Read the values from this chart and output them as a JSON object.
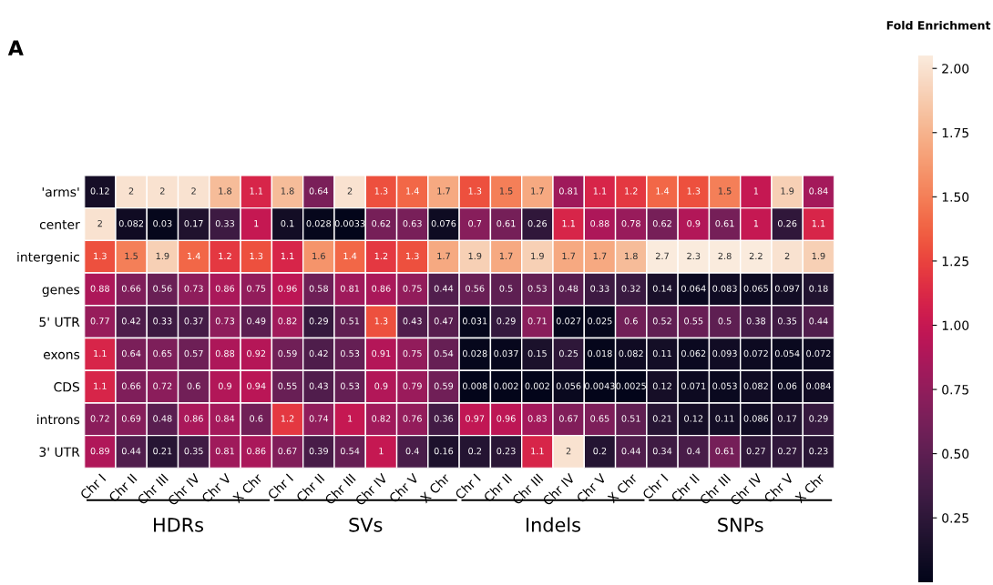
{
  "chart_data": {
    "type": "heatmap",
    "title": "A",
    "clabel": "Fold Enrichment",
    "categories": [
      "Chr I",
      "Chr II",
      "Chr III",
      "Chr IV",
      "Chr V",
      "X Chr",
      "Chr I",
      "Chr II",
      "Chr III",
      "Chr IV",
      "Chr V",
      "X Chr",
      "Chr I",
      "Chr II",
      "Chr III",
      "Chr IV",
      "Chr V",
      "X Chr",
      "Chr I",
      "Chr II",
      "Chr III",
      "Chr IV",
      "Chr V",
      "X Chr"
    ],
    "y_categories": [
      "'arms'",
      "center",
      "intergenic",
      "genes",
      "5' UTR",
      "exons",
      "CDS",
      "introns",
      "3' UTR"
    ],
    "cells": [
      [
        0.12,
        2,
        2,
        2,
        1.8,
        1.1,
        1.8,
        0.64,
        2,
        1.3,
        1.4,
        1.7,
        1.3,
        1.5,
        1.7,
        0.81,
        1.1,
        1.2,
        1.4,
        1.3,
        1.5,
        1,
        1.9,
        0.84
      ],
      [
        2,
        0.082,
        0.03,
        0.17,
        0.33,
        1,
        0.1,
        0.028,
        0.0033,
        0.62,
        0.63,
        0.076,
        0.7,
        0.61,
        0.26,
        1.1,
        0.88,
        0.78,
        0.62,
        0.9,
        0.61,
        1,
        0.26,
        1.1
      ],
      [
        1.3,
        1.5,
        1.9,
        1.4,
        1.2,
        1.3,
        1.1,
        1.6,
        1.4,
        1.2,
        1.3,
        1.7,
        1.9,
        1.7,
        1.9,
        1.7,
        1.7,
        1.8,
        2.7,
        2.3,
        2.8,
        2.2,
        2,
        1.9
      ],
      [
        0.88,
        0.66,
        0.56,
        0.73,
        0.86,
        0.75,
        0.96,
        0.58,
        0.81,
        0.86,
        0.75,
        0.44,
        0.56,
        0.5,
        0.53,
        0.48,
        0.33,
        0.32,
        0.14,
        0.064,
        0.083,
        0.065,
        0.097,
        0.18
      ],
      [
        0.77,
        0.42,
        0.33,
        0.37,
        0.73,
        0.49,
        0.82,
        0.29,
        0.51,
        1.3,
        0.43,
        0.47,
        0.031,
        0.29,
        0.71,
        0.027,
        0.025,
        0.6,
        0.52,
        0.55,
        0.5,
        0.38,
        0.35,
        0.44
      ],
      [
        1.1,
        0.64,
        0.65,
        0.57,
        0.88,
        0.92,
        0.59,
        0.42,
        0.53,
        0.91,
        0.75,
        0.54,
        0.028,
        0.037,
        0.15,
        0.25,
        0.018,
        0.082,
        0.11,
        0.062,
        0.093,
        0.072,
        0.054,
        0.072
      ],
      [
        1.1,
        0.66,
        0.72,
        0.6,
        0.9,
        0.94,
        0.55,
        0.43,
        0.53,
        0.9,
        0.79,
        0.59,
        0.008,
        0.002,
        0.002,
        0.056,
        0.0043,
        0.0025,
        0.12,
        0.071,
        0.053,
        0.082,
        0.06,
        0.084
      ],
      [
        0.72,
        0.69,
        0.48,
        0.86,
        0.84,
        0.6,
        1.2,
        0.74,
        1,
        0.82,
        0.76,
        0.36,
        0.97,
        0.96,
        0.83,
        0.67,
        0.65,
        0.51,
        0.21,
        0.12,
        0.11,
        0.086,
        0.17,
        0.29
      ],
      [
        0.89,
        0.44,
        0.21,
        0.35,
        0.81,
        0.86,
        0.67,
        0.39,
        0.54,
        1,
        0.4,
        0.16,
        0.2,
        0.23,
        1.1,
        2,
        0.2,
        0.44,
        0.34,
        0.4,
        0.61,
        0.27,
        0.27,
        0.23
      ]
    ],
    "data_labels": true,
    "clim": [
      0.0,
      2.05
    ],
    "cticks": [
      {
        "value": 0.25,
        "label": "0.25"
      },
      {
        "value": 0.5,
        "label": "0.50"
      },
      {
        "value": 0.75,
        "label": "0.75"
      },
      {
        "value": 1.0,
        "label": "1.00"
      },
      {
        "value": 1.25,
        "label": "1.25"
      },
      {
        "value": 1.5,
        "label": "1.50"
      },
      {
        "value": 1.75,
        "label": "1.75"
      },
      {
        "value": 2.0,
        "label": "2.00"
      }
    ],
    "annotations": [
      "HDRs",
      "SVs",
      "Indels",
      "SNPs"
    ]
  }
}
